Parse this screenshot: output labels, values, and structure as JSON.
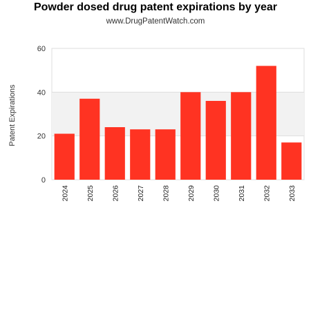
{
  "chart_data": {
    "type": "bar",
    "title": "Powder dosed drug patent expirations by year",
    "subtitle": "www.DrugPatentWatch.com",
    "xlabel": "",
    "ylabel": "Patent Expirations",
    "categories": [
      "2024",
      "2025",
      "2026",
      "2027",
      "2028",
      "2029",
      "2030",
      "2031",
      "2032",
      "2033"
    ],
    "values": [
      21,
      37,
      24,
      23,
      23,
      40,
      36,
      40,
      52,
      17
    ],
    "ylim": [
      0,
      60
    ],
    "yticks": [
      0,
      20,
      40,
      60
    ],
    "grid": true,
    "legend": "none",
    "colors": {
      "bar": "#ff3322",
      "band": "#f2f2f2",
      "grid": "#dddddd"
    }
  }
}
